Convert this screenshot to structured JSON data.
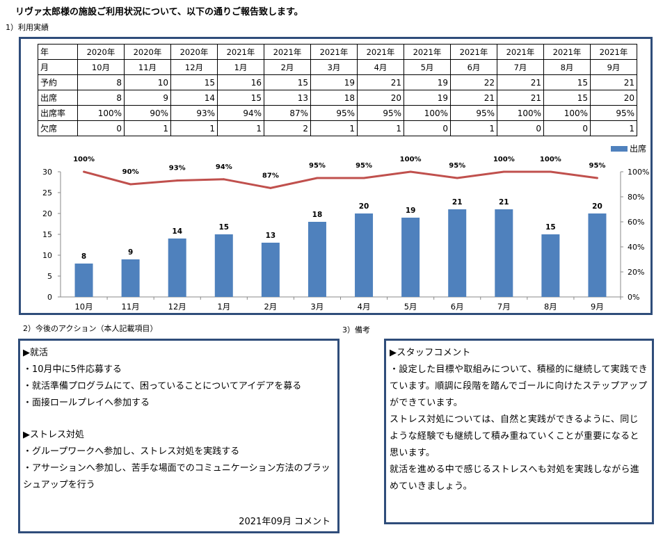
{
  "title": "リヴァ太郎様の施設ご利用状況について、以下の通りご報告致します。",
  "sections": {
    "usage": "1）利用実績",
    "actions": "2）今後のアクション（本人記載項目）",
    "notes": "3）備考"
  },
  "table": {
    "row_labels": {
      "year": "年",
      "month": "月",
      "reserved": "予約",
      "attended": "出席",
      "rate": "出席率",
      "absent": "欠席"
    },
    "years": [
      "2020年",
      "2020年",
      "2020年",
      "2021年",
      "2021年",
      "2021年",
      "2021年",
      "2021年",
      "2021年",
      "2021年",
      "2021年",
      "2021年"
    ],
    "months": [
      "10月",
      "11月",
      "12月",
      "1月",
      "2月",
      "3月",
      "4月",
      "5月",
      "6月",
      "7月",
      "8月",
      "9月"
    ],
    "reserved": [
      "8",
      "10",
      "15",
      "16",
      "15",
      "19",
      "21",
      "19",
      "22",
      "21",
      "15",
      "21"
    ],
    "attended": [
      "8",
      "9",
      "14",
      "15",
      "13",
      "18",
      "20",
      "19",
      "21",
      "21",
      "15",
      "20"
    ],
    "rate": [
      "100%",
      "90%",
      "93%",
      "94%",
      "87%",
      "95%",
      "95%",
      "100%",
      "95%",
      "100%",
      "100%",
      "95%"
    ],
    "absent": [
      "0",
      "1",
      "1",
      "1",
      "2",
      "1",
      "1",
      "0",
      "1",
      "0",
      "0",
      "1"
    ]
  },
  "chart_data": {
    "type": "bar",
    "categories": [
      "10月",
      "11月",
      "12月",
      "1月",
      "2月",
      "3月",
      "4月",
      "5月",
      "6月",
      "7月",
      "8月",
      "9月"
    ],
    "series": [
      {
        "name": "出席",
        "type": "bar",
        "axis": "left",
        "color": "#4f81bd",
        "values": [
          8,
          9,
          14,
          15,
          13,
          18,
          20,
          19,
          21,
          21,
          15,
          20
        ]
      },
      {
        "type": "line",
        "axis": "right",
        "color": "#c0504d",
        "values": [
          100,
          90,
          93,
          94,
          87,
          95,
          95,
          100,
          95,
          100,
          100,
          95
        ]
      }
    ],
    "ylim_left": [
      0,
      30
    ],
    "yticks_left": [
      "0",
      "5",
      "10",
      "15",
      "20",
      "25",
      "30"
    ],
    "ylim_right": [
      0,
      100
    ],
    "yticks_right": [
      "0%",
      "20%",
      "40%",
      "60%",
      "80%",
      "100%"
    ],
    "legend": "top-right",
    "grid": false
  },
  "actions": {
    "job_heading": "▶就活",
    "job_items": [
      "・10月中に5件応募する",
      "・就活準備プログラムにて、困っていることについてアイデアを募る",
      "・面接ロールプレイへ参加する"
    ],
    "stress_heading": "▶ストレス対処",
    "stress_items": [
      "・グループワークへ参加し、ストレス対処を実践する",
      "・アサーションへ参加し、苦手な場面でのコミュニケーション方法のブラッシュアップを行う"
    ],
    "comment_date": "2021年09月 コメント"
  },
  "notes": {
    "heading": "▶スタッフコメント",
    "lines": [
      "・設定した目標や取組みについて、積極的に継続して実践できています。順調に段階を踏んでゴールに向けたステップアップができています。",
      "ストレス対処については、自然と実践ができるように、同じような経験でも継続して積み重ねていくことが重要になると思います。",
      "就活を進める中で感じるストレスへも対処を実践しながら進めていきましょう。"
    ]
  }
}
